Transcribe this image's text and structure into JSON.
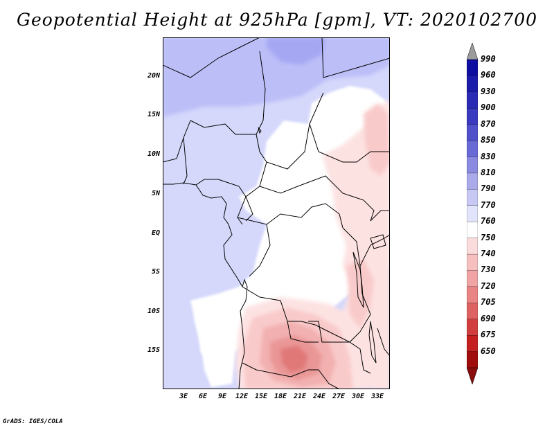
{
  "title": "Geopotential Height at 925hPa [gpm], VT: 2020102700",
  "latitude_labels": [
    "20N",
    "15N",
    "10N",
    "5N",
    "EQ",
    "5S",
    "10S",
    "15S"
  ],
  "longitude_labels": [
    "3E",
    "6E",
    "9E",
    "12E",
    "15E",
    "18E",
    "21E",
    "24E",
    "27E",
    "30E",
    "33E"
  ],
  "colorbar": {
    "levels": [
      "990",
      "960",
      "930",
      "900",
      "870",
      "850",
      "830",
      "810",
      "790",
      "770",
      "760",
      "750",
      "740",
      "730",
      "720",
      "705",
      "690",
      "675",
      "650"
    ],
    "colors": [
      "#9b9b9b",
      "#0e0ea0",
      "#1c1cab",
      "#2a2ab5",
      "#3a3ac0",
      "#5050cb",
      "#6a6ad6",
      "#8a8ae0",
      "#aaaaeb",
      "#c8c8f5",
      "#e2e4fb",
      "#ffffff",
      "#fbdcdc",
      "#f6c0c0",
      "#f0a4a4",
      "#e88484",
      "#de6262",
      "#d23e3e",
      "#c42020",
      "#a00d0d",
      "#8a0d0d"
    ]
  },
  "credit": "GrADS: IGES/COLA"
}
